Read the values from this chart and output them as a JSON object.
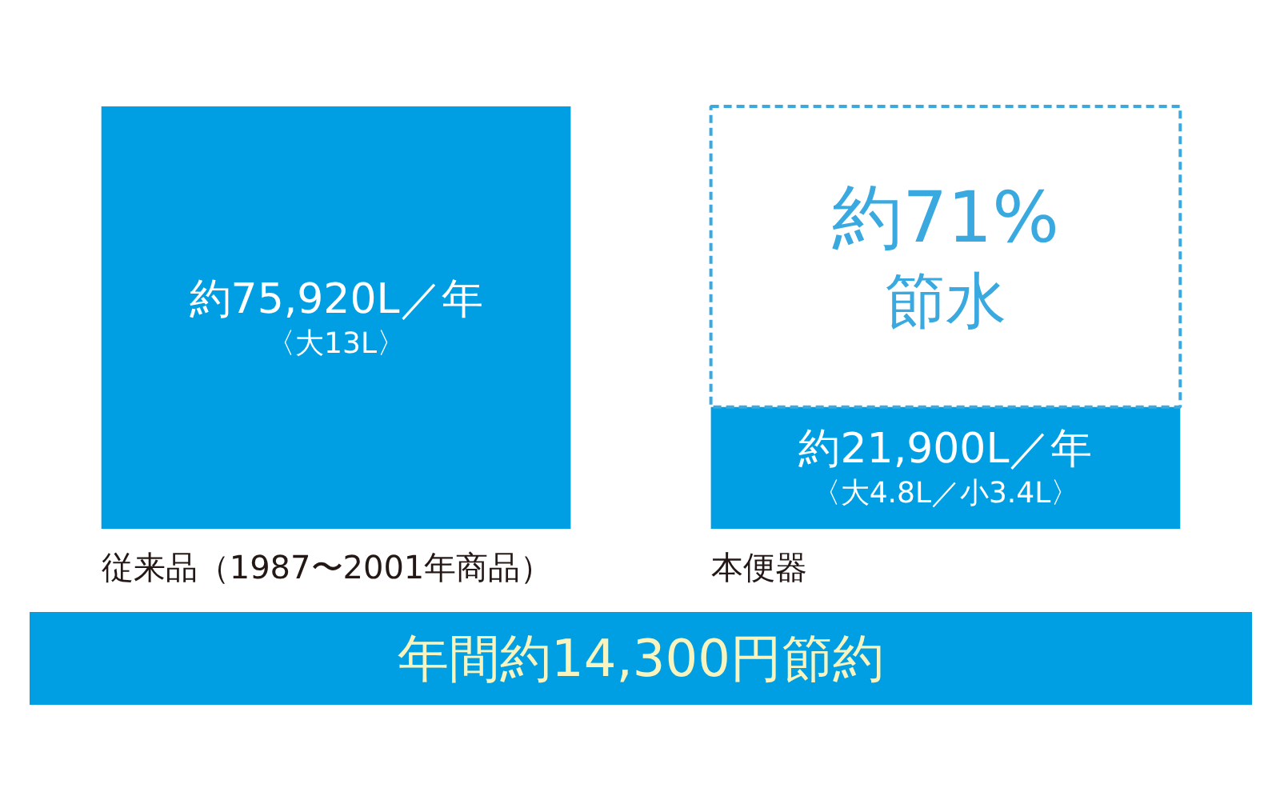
{
  "chart_data": {
    "type": "bar",
    "stacked": true,
    "categories": [
      "従来品（1987〜2001年商品）",
      "本便器"
    ],
    "series": [
      {
        "color": "#009fe3",
        "values": [
          75920,
          21900
        ],
        "value_labels": [
          "約75,920L／年〈大13L〉",
          "約21,900L／年〈大4.8L／小3.4L〉"
        ]
      },
      {
        "color": "#3aa9e0",
        "values": [
          null,
          54020
        ],
        "line_style": "dashed",
        "value_labels": [
          null,
          "約71%節水"
        ]
      }
    ],
    "annotations": [
      "年間約14,300円節約"
    ]
  }
}
